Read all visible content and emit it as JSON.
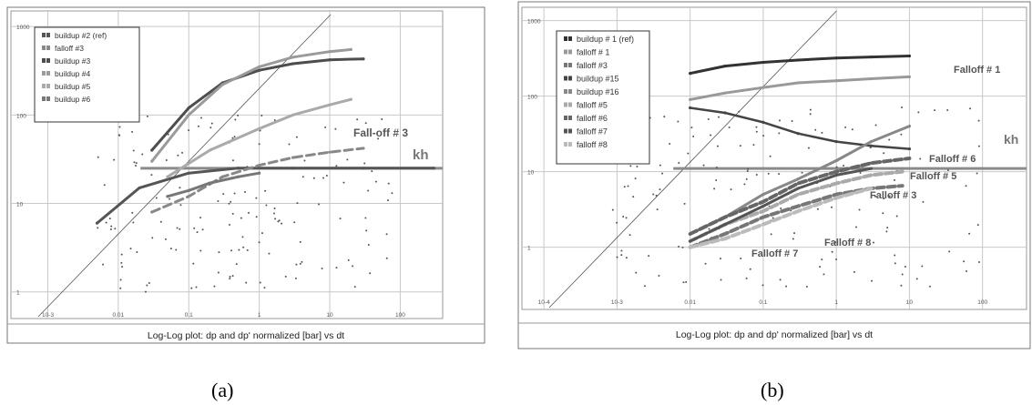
{
  "panels": [
    {
      "label": "(a)",
      "title": "Log-Log plot: dp and dp' normalized [bar] vs dt",
      "x_ticks": [
        "10-3",
        "0.01",
        "0.1",
        "1",
        "10",
        "100"
      ],
      "y_ticks": [
        "1",
        "10",
        "100",
        "1000"
      ],
      "legend": [
        "buildup #2 (ref)",
        "falloff #3",
        "buildup #3",
        "buildup #4",
        "buildup #5",
        "buildup #6"
      ],
      "annotations": [
        "Fall-off # 3",
        "kh"
      ]
    },
    {
      "label": "(b)",
      "title": "Log-Log plot: dp and dp' normalized [bar] vs dt",
      "x_ticks": [
        "10-4",
        "10-3",
        "0.01",
        "0.1",
        "1",
        "10",
        "100"
      ],
      "y_ticks": [
        "1",
        "10",
        "100",
        "1000"
      ],
      "legend": [
        "buildup # 1 (ref)",
        "falloff # 1",
        "falloff #3",
        "buildup #15",
        "buildup #16",
        "falloff #5",
        "falloff #6",
        "falloff #7",
        "falloff #8"
      ],
      "annotations": [
        "Falloff # 1",
        "kh",
        "Falloff # 6",
        "Falloff # 5",
        "Falloff # 3",
        "Falloff # 7",
        "Falloff # 8"
      ]
    }
  ],
  "chart_data": [
    {
      "type": "line",
      "title": "Log-Log plot: dp and dp' normalized [bar] vs dt",
      "xlabel": "",
      "ylabel": "",
      "x_scale": "log",
      "y_scale": "log",
      "xlim": [
        0.0003,
        400
      ],
      "ylim": [
        0.5,
        1500
      ],
      "grid": true,
      "legend_position": "top-left",
      "series": [
        {
          "name": "buildup #2 (ref)",
          "x": [
            0.005,
            0.02,
            0.1,
            0.5,
            3,
            30,
            300
          ],
          "y": [
            6,
            15,
            22,
            25,
            25,
            25,
            25
          ]
        },
        {
          "name": "falloff #3",
          "x": [
            0.03,
            0.1,
            0.3,
            1,
            3,
            10,
            30
          ],
          "y": [
            8,
            12,
            20,
            27,
            33,
            38,
            42
          ]
        },
        {
          "name": "buildup #3",
          "x": [
            0.03,
            0.1,
            0.3,
            1,
            3,
            10,
            30
          ],
          "y": [
            40,
            120,
            230,
            320,
            380,
            420,
            430
          ]
        },
        {
          "name": "buildup #4",
          "x": [
            0.03,
            0.1,
            0.3,
            1,
            3,
            10,
            20
          ],
          "y": [
            30,
            100,
            220,
            350,
            450,
            520,
            550
          ]
        },
        {
          "name": "buildup #5",
          "x": [
            0.05,
            0.2,
            1,
            3,
            10,
            20
          ],
          "y": [
            20,
            40,
            70,
            100,
            130,
            150
          ]
        },
        {
          "name": "buildup #6",
          "x": [
            0.05,
            0.1,
            0.2,
            0.5,
            1
          ],
          "y": [
            12,
            14,
            17,
            20,
            22
          ]
        }
      ]
    },
    {
      "type": "line",
      "title": "Log-Log plot: dp and dp' normalized [bar] vs dt",
      "xlabel": "",
      "ylabel": "",
      "x_scale": "log",
      "y_scale": "log",
      "xlim": [
        5e-05,
        400
      ],
      "ylim": [
        0.15,
        1500
      ],
      "grid": true,
      "legend_position": "top-left",
      "series": [
        {
          "name": "buildup # 1 (ref)",
          "x": [
            0.01,
            0.03,
            0.1,
            0.3,
            1,
            3,
            10
          ],
          "y": [
            200,
            250,
            280,
            300,
            320,
            330,
            340
          ]
        },
        {
          "name": "falloff # 1",
          "x": [
            0.01,
            0.03,
            0.1,
            0.3,
            1,
            3,
            10
          ],
          "y": [
            90,
            110,
            130,
            150,
            160,
            170,
            180
          ]
        },
        {
          "name": "falloff #3",
          "x": [
            0.01,
            0.03,
            0.1,
            0.3,
            1,
            3,
            8
          ],
          "y": [
            1,
            1.5,
            2.5,
            3.5,
            5,
            6,
            6.5
          ]
        },
        {
          "name": "buildup #15",
          "x": [
            0.01,
            0.03,
            0.1,
            0.3,
            1,
            3,
            10
          ],
          "y": [
            70,
            60,
            45,
            32,
            25,
            22,
            20
          ]
        },
        {
          "name": "buildup #16",
          "x": [
            0.01,
            0.03,
            0.1,
            0.3,
            1,
            3,
            10
          ],
          "y": [
            1.5,
            2.5,
            5,
            8,
            14,
            25,
            40
          ]
        },
        {
          "name": "falloff #5",
          "x": [
            0.01,
            0.03,
            0.1,
            0.3,
            1,
            3,
            8
          ],
          "y": [
            1.2,
            2,
            3,
            5,
            7,
            9,
            10
          ]
        },
        {
          "name": "falloff #6",
          "x": [
            0.01,
            0.03,
            0.1,
            0.3,
            1,
            3,
            10
          ],
          "y": [
            1.5,
            2.5,
            4,
            7,
            10,
            13,
            15
          ]
        },
        {
          "name": "falloff #7",
          "x": [
            0.01,
            0.03,
            0.1,
            0.3,
            1,
            3
          ],
          "y": [
            1.2,
            2,
            3.5,
            6,
            9,
            11
          ]
        },
        {
          "name": "falloff #8",
          "x": [
            0.01,
            0.03,
            0.1,
            0.3,
            1,
            3
          ],
          "y": [
            1,
            1.3,
            2,
            3,
            4.5,
            6
          ]
        }
      ]
    }
  ]
}
